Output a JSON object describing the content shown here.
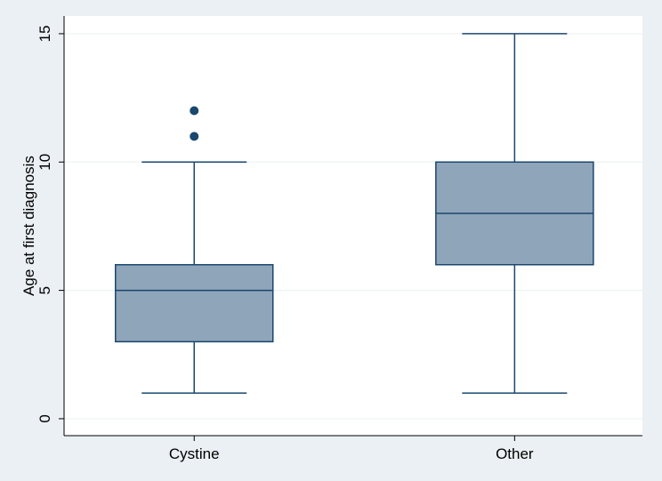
{
  "chart_data": {
    "type": "box",
    "ylabel": "Age at first diagnosis",
    "categories": [
      "Cystine",
      "Other"
    ],
    "boxes": [
      {
        "whislo": 1,
        "q1": 3,
        "med": 5,
        "q3": 6,
        "whishi": 10,
        "fliers": [
          11,
          12
        ]
      },
      {
        "whislo": 1,
        "q1": 6,
        "med": 8,
        "q3": 10,
        "whishi": 15,
        "fliers": []
      }
    ],
    "color": "#8fa5b9",
    "edge_color": "#1a476f",
    "ylim": [
      -0.66,
      15.69
    ],
    "yticks": [
      0,
      5,
      10,
      15
    ],
    "grid": true
  }
}
